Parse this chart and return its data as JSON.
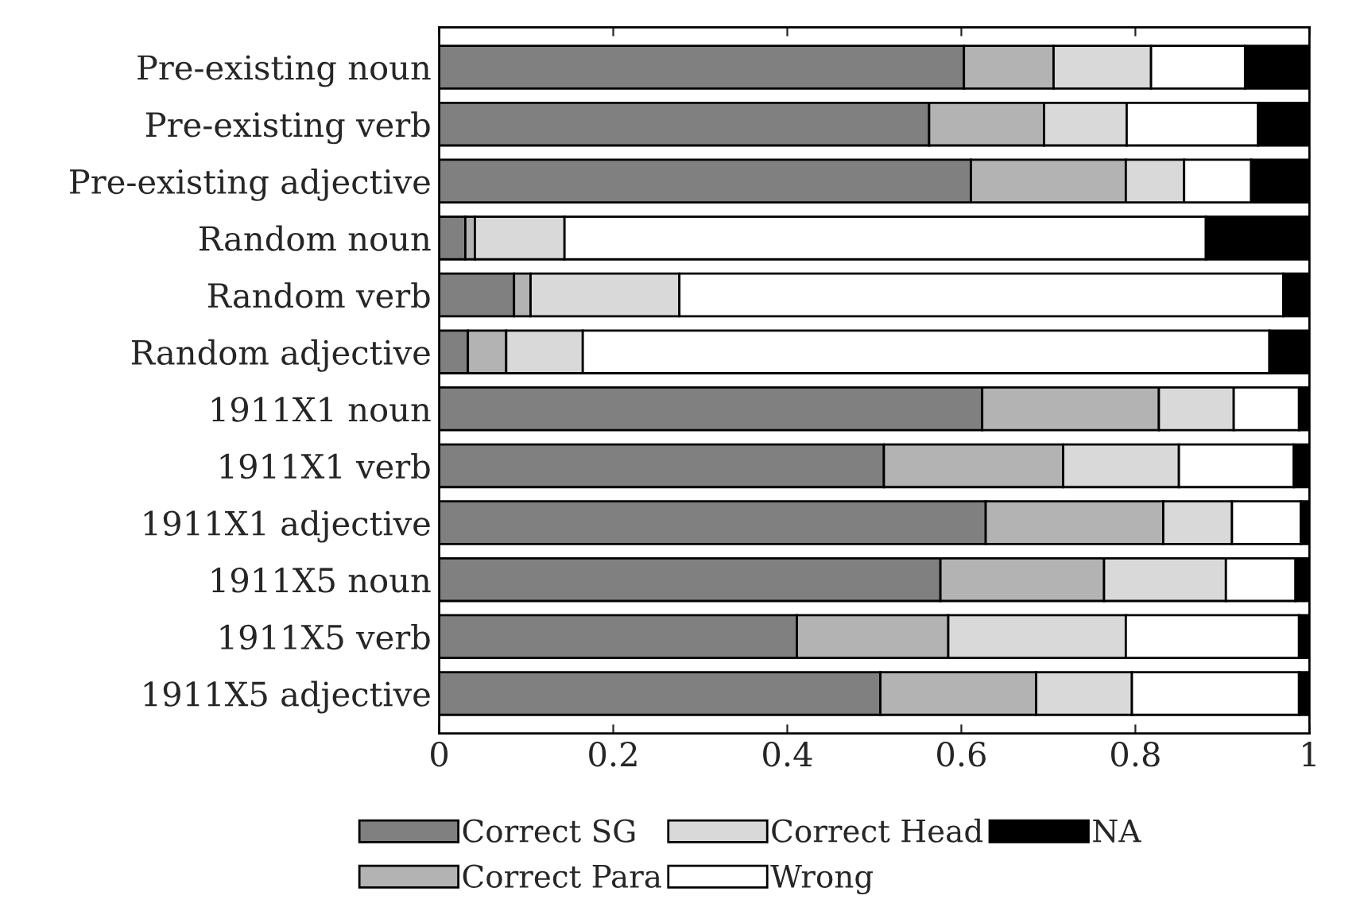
{
  "chart_data": {
    "type": "bar",
    "orientation": "horizontal",
    "stacked": true,
    "categories": [
      "Pre-existing noun",
      "Pre-existing verb",
      "Pre-existing adjective",
      "Random noun",
      "Random verb",
      "Random adjective",
      "1911X1 noun",
      "1911X1 verb",
      "1911X1 adjective",
      "1911X5 noun",
      "1911X5 verb",
      "1911X5 adjective"
    ],
    "series": [
      {
        "name": "Correct SG",
        "color": "#808080",
        "values": [
          0.603,
          0.563,
          0.611,
          0.03,
          0.086,
          0.033,
          0.624,
          0.511,
          0.628,
          0.576,
          0.411,
          0.507
        ]
      },
      {
        "name": "Correct Para",
        "color": "#b3b3b3",
        "values": [
          0.103,
          0.132,
          0.178,
          0.011,
          0.019,
          0.044,
          0.203,
          0.206,
          0.204,
          0.188,
          0.174,
          0.179
        ]
      },
      {
        "name": "Correct Head",
        "color": "#d9d9d9",
        "values": [
          0.112,
          0.095,
          0.067,
          0.103,
          0.171,
          0.088,
          0.086,
          0.133,
          0.079,
          0.14,
          0.204,
          0.11
        ]
      },
      {
        "name": "Wrong",
        "color": "#ffffff",
        "values": [
          0.108,
          0.151,
          0.077,
          0.737,
          0.694,
          0.789,
          0.075,
          0.132,
          0.079,
          0.08,
          0.199,
          0.192
        ]
      },
      {
        "name": "NA",
        "color": "#000000",
        "values": [
          0.074,
          0.059,
          0.067,
          0.119,
          0.03,
          0.046,
          0.012,
          0.018,
          0.01,
          0.016,
          0.012,
          0.012
        ]
      }
    ],
    "xlim": [
      0,
      1
    ],
    "xticks": [
      0,
      0.2,
      0.4,
      0.6,
      0.8,
      1
    ],
    "grid": false,
    "legend": "bottom"
  }
}
